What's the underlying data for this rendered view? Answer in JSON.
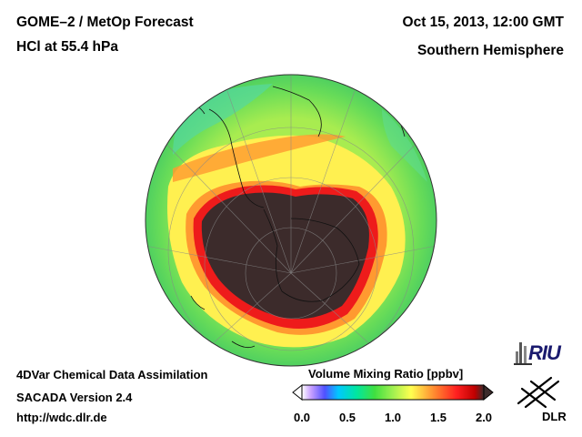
{
  "header": {
    "title_line1": "GOME–2 / MetOp Forecast",
    "title_line2": "HCl at 55.4 hPa",
    "datetime": "Oct 15, 2013, 12:00 GMT",
    "region": "Southern Hemisphere"
  },
  "footer": {
    "line1": "4DVar Chemical Data Assimilation",
    "line2": "SACADA Version 2.4",
    "line3": "http://wdc.dlr.de"
  },
  "colorbar": {
    "title": "Volume Mixing Ratio [ppbv]",
    "min": 0.0,
    "max": 2.0,
    "ticks": [
      "0.0",
      "0.5",
      "1.0",
      "1.5",
      "2.0"
    ],
    "tick_values": [
      0.0,
      0.5,
      1.0,
      1.5,
      2.0
    ],
    "stops": [
      {
        "v": 0.0,
        "color": "#ffffff"
      },
      {
        "v": 0.1,
        "color": "#c8a0ff"
      },
      {
        "v": 0.25,
        "color": "#5050ff"
      },
      {
        "v": 0.4,
        "color": "#00c8ff"
      },
      {
        "v": 0.6,
        "color": "#00e6a0"
      },
      {
        "v": 0.8,
        "color": "#40e040"
      },
      {
        "v": 1.0,
        "color": "#a0f050"
      },
      {
        "v": 1.2,
        "color": "#ffff50"
      },
      {
        "v": 1.45,
        "color": "#ff8c30"
      },
      {
        "v": 1.7,
        "color": "#ff2020"
      },
      {
        "v": 1.9,
        "color": "#c00000"
      },
      {
        "v": 2.0,
        "color": "#3c2b2b"
      }
    ]
  },
  "map": {
    "projection": "orthographic",
    "hemisphere": "south",
    "colors": {
      "outer_band": "#70e050",
      "mid_band": "#b8f050",
      "yellow_band": "#ffef50",
      "orange_band": "#ff9a30",
      "red_edge": "#ee1b1b",
      "vortex_core": "#3c2b2b",
      "background": "#ffffff"
    }
  },
  "logos": {
    "riu": "RIU",
    "dlr": "DLR"
  }
}
